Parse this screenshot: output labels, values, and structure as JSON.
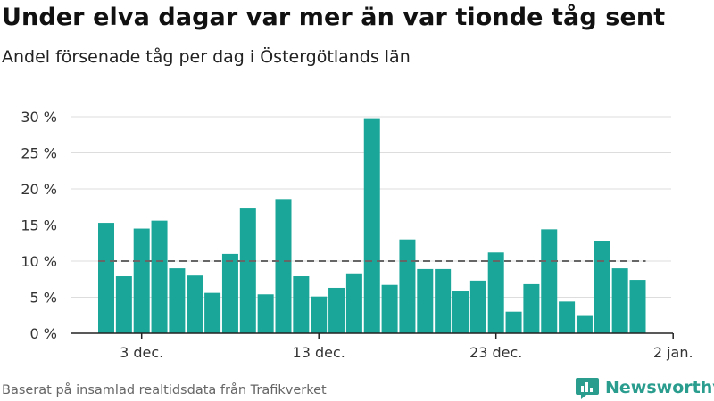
{
  "title": "Under elva dagar var mer än var tionde tåg sent",
  "subtitle": "Andel försenade tåg per dag i Östergötlands län",
  "source": "Baserat på insamlad realtidsdata från Trafikverket",
  "brand": {
    "name": "Newsworthy"
  },
  "colors": {
    "bar": "#1aa79a",
    "reference_line": "#666666",
    "grid": "#dddddd",
    "axis": "#222222",
    "brand": "#2a9d8f"
  },
  "chart_data": {
    "type": "bar",
    "xlabel": "",
    "ylabel": "",
    "ylim": [
      0,
      30
    ],
    "yticks": [
      0,
      5,
      10,
      15,
      20,
      25,
      30
    ],
    "ytick_labels": [
      "0 %",
      "5 %",
      "10 %",
      "15 %",
      "20 %",
      "25 %",
      "30 %"
    ],
    "xticks": [
      {
        "label": "3 dec.",
        "day_index": 2
      },
      {
        "label": "13 dec.",
        "day_index": 12
      },
      {
        "label": "23 dec.",
        "day_index": 22
      },
      {
        "label": "2 jan.",
        "day_index": 32
      }
    ],
    "categories": [
      "1 dec.",
      "2 dec.",
      "3 dec.",
      "4 dec.",
      "5 dec.",
      "6 dec.",
      "7 dec.",
      "8 dec.",
      "9 dec.",
      "10 dec.",
      "11 dec.",
      "12 dec.",
      "13 dec.",
      "14 dec.",
      "15 dec.",
      "16 dec.",
      "17 dec.",
      "18 dec.",
      "19 dec.",
      "20 dec.",
      "21 dec.",
      "22 dec.",
      "23 dec.",
      "24 dec.",
      "25 dec.",
      "26 dec.",
      "27 dec.",
      "28 dec.",
      "29 dec.",
      "30 dec.",
      "31 dec."
    ],
    "values": [
      15.3,
      7.9,
      14.5,
      15.6,
      9.0,
      8.0,
      5.6,
      11.0,
      17.4,
      5.4,
      18.6,
      7.9,
      5.1,
      6.3,
      8.3,
      29.8,
      6.7,
      13.0,
      8.9,
      8.9,
      5.8,
      7.3,
      11.2,
      3.0,
      6.8,
      14.4,
      4.4,
      2.4,
      12.8,
      9.0,
      7.4
    ],
    "reference_line": {
      "value": 10,
      "style": "dashed"
    },
    "grid": true,
    "legend": "none"
  }
}
